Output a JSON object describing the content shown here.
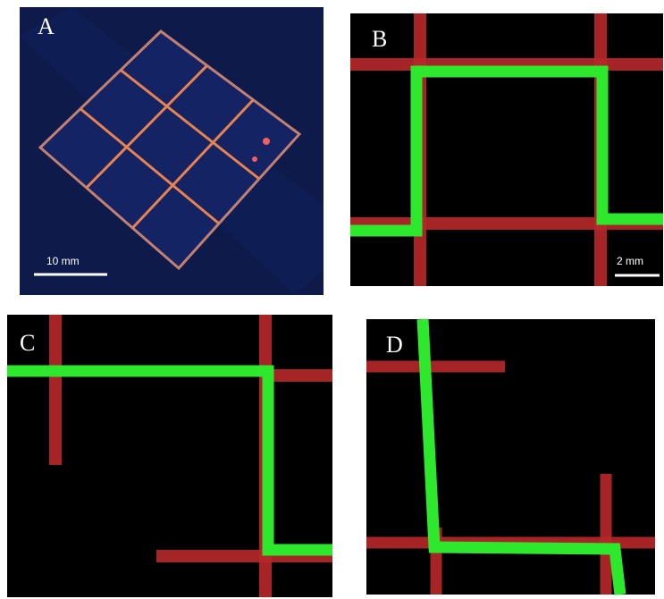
{
  "panels": [
    {
      "label": "A",
      "scale_bar": "10 mm"
    },
    {
      "label": "B",
      "scale_bar": "2 mm"
    },
    {
      "label": "C"
    },
    {
      "label": "D"
    }
  ]
}
